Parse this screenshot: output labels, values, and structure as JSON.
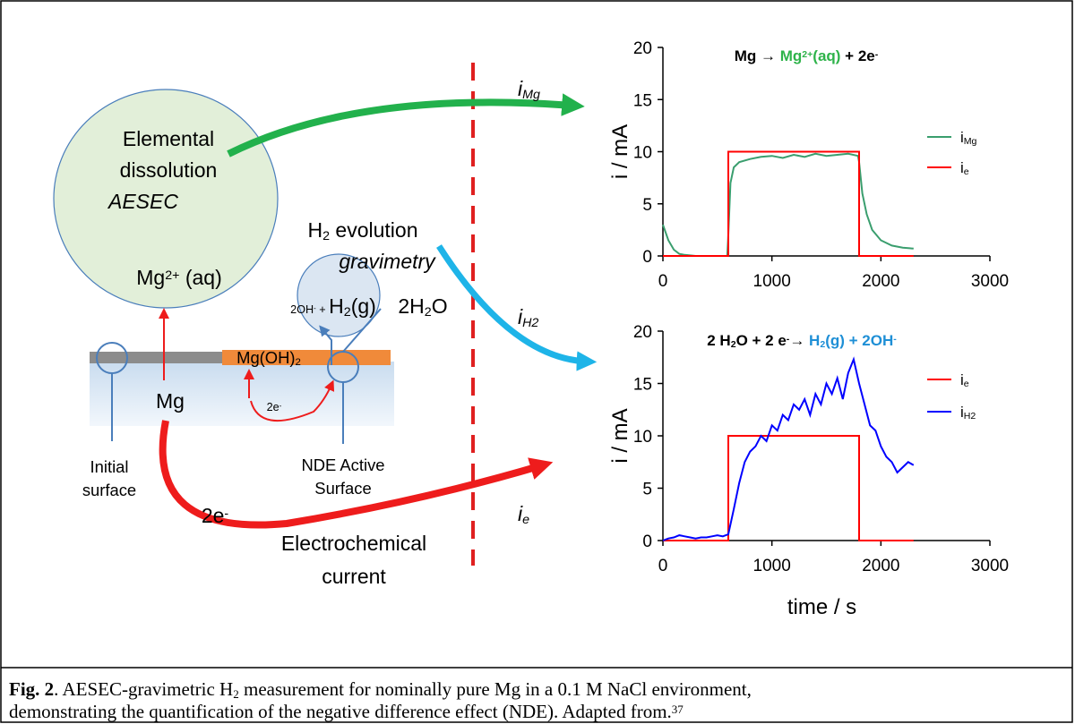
{
  "diagram": {
    "elemental": [
      {
        "text": "Elemental"
      }
    ],
    "dissolution": [
      {
        "text": "dissolution"
      }
    ],
    "aesec": [
      {
        "text": "AESEC",
        "style": "italic"
      }
    ],
    "mg_ion": [
      {
        "text": "Mg"
      },
      {
        "text": "2+",
        "style": "sup"
      },
      {
        "text": " (aq)"
      }
    ],
    "h2_evolution": [
      {
        "text": "H"
      },
      {
        "text": "2",
        "style": "sub"
      },
      {
        "text": " evolution"
      }
    ],
    "gravimetry": [
      {
        "text": "gravimetry",
        "style": "italic"
      }
    ],
    "oh_h2": [
      {
        "text": "2OH",
        "style": "small"
      },
      {
        "text": "-",
        "style": "small sup"
      },
      {
        "text": " + ",
        "style": "small"
      },
      {
        "text": "H"
      },
      {
        "text": "2",
        "style": "sub"
      },
      {
        "text": "(g)"
      }
    ],
    "water": [
      {
        "text": "2H"
      },
      {
        "text": "2",
        "style": "sub"
      },
      {
        "text": "O"
      }
    ],
    "mgoh2": [
      {
        "text": "Mg(OH)",
        "style": "mid"
      },
      {
        "text": "2",
        "style": "mid sub"
      }
    ],
    "mg": [
      {
        "text": "Mg"
      }
    ],
    "e_small": [
      {
        "text": "2e",
        "style": "small"
      },
      {
        "text": "-",
        "style": "small sup"
      }
    ],
    "initial_1": [
      {
        "text": "Initial",
        "style": "mid"
      }
    ],
    "initial_2": [
      {
        "text": "surface",
        "style": "mid"
      }
    ],
    "nde_1": [
      {
        "text": "NDE Active",
        "style": "mid"
      }
    ],
    "nde_2": [
      {
        "text": "Surface",
        "style": "mid"
      }
    ],
    "e_big": [
      {
        "text": "2e"
      },
      {
        "text": "-",
        "style": "sup"
      }
    ],
    "current_1": [
      {
        "text": "Electrochemical"
      }
    ],
    "current_2": [
      {
        "text": "current"
      }
    ],
    "i_mg": [
      {
        "text": "i",
        "style": "italic"
      },
      {
        "text": "Mg",
        "style": "italic sub"
      }
    ],
    "i_h2": [
      {
        "text": "i",
        "style": "italic"
      },
      {
        "text": "H",
        "style": "italic sub"
      },
      {
        "text": "2",
        "style": "italic sub"
      }
    ],
    "i_e": [
      {
        "text": "i",
        "style": "italic"
      },
      {
        "text": "e",
        "style": "italic sub"
      }
    ]
  },
  "chart_data": [
    {
      "type": "line",
      "title": [
        {
          "text": "Mg → ",
          "style": "bold",
          "color": "#000000"
        },
        {
          "text": "Mg",
          "style": "bold",
          "color": "#2eb34a"
        },
        {
          "text": "2+",
          "style": "bold sup",
          "color": "#2eb34a"
        },
        {
          "text": "(aq)",
          "style": "bold",
          "color": "#2eb34a"
        },
        {
          "text": " + 2e",
          "style": "bold",
          "color": "#000000"
        },
        {
          "text": "-",
          "style": "bold sup",
          "color": "#000000"
        }
      ],
      "y_label": "i / mA",
      "xlim": [
        0,
        3000
      ],
      "xticks": [
        0,
        1000,
        2000,
        3000
      ],
      "ylim": [
        0,
        20
      ],
      "yticks": [
        0,
        5,
        10,
        15,
        20
      ],
      "series": [
        {
          "name": [
            {
              "text": "i"
            },
            {
              "text": "Mg",
              "style": "sub"
            }
          ],
          "color": "#3a9e6e",
          "x": [
            0,
            50,
            100,
            150,
            200,
            300,
            400,
            500,
            590,
            600,
            620,
            650,
            700,
            800,
            900,
            1000,
            1100,
            1200,
            1300,
            1400,
            1500,
            1600,
            1700,
            1790,
            1800,
            1830,
            1870,
            1920,
            2000,
            2100,
            2200,
            2300
          ],
          "values": [
            3,
            1.5,
            0.6,
            0.2,
            0.1,
            0,
            0,
            0,
            0,
            2,
            7,
            8.5,
            9,
            9.3,
            9.5,
            9.6,
            9.4,
            9.7,
            9.5,
            9.8,
            9.6,
            9.7,
            9.8,
            9.6,
            9,
            6,
            4,
            2.5,
            1.5,
            1,
            0.8,
            0.7
          ]
        },
        {
          "name": [
            {
              "text": "i"
            },
            {
              "text": "e",
              "style": "sub"
            }
          ],
          "color": "#ff0000",
          "x": [
            0,
            600,
            600,
            1800,
            1800,
            2300
          ],
          "values": [
            0,
            0,
            10,
            10,
            0,
            0
          ]
        }
      ]
    },
    {
      "type": "line",
      "title": [
        {
          "text": "2 H",
          "style": "bold",
          "color": "#000000"
        },
        {
          "text": "2",
          "style": "bold sub",
          "color": "#000000"
        },
        {
          "text": "O + 2 e",
          "style": "bold",
          "color": "#000000"
        },
        {
          "text": "-",
          "style": "bold sup",
          "color": "#000000"
        },
        {
          "text": "→ ",
          "style": "bold",
          "color": "#000000"
        },
        {
          "text": "H",
          "style": "bold",
          "color": "#1e8fd6"
        },
        {
          "text": "2",
          "style": "bold sub",
          "color": "#1e8fd6"
        },
        {
          "text": "(g) + 2OH",
          "style": "bold",
          "color": "#1e8fd6"
        },
        {
          "text": "-",
          "style": "bold sup",
          "color": "#1e8fd6"
        }
      ],
      "y_label": "i / mA",
      "x_label": "time / s",
      "xlim": [
        0,
        3000
      ],
      "xticks": [
        0,
        1000,
        2000,
        3000
      ],
      "ylim": [
        0,
        20
      ],
      "yticks": [
        0,
        5,
        10,
        15,
        20
      ],
      "series": [
        {
          "name": [
            {
              "text": "i"
            },
            {
              "text": "e",
              "style": "sub"
            }
          ],
          "color": "#ff0000",
          "x": [
            0,
            600,
            600,
            1800,
            1800,
            2300
          ],
          "values": [
            0,
            0,
            10,
            10,
            0,
            0
          ]
        },
        {
          "name": [
            {
              "text": "i"
            },
            {
              "text": "H",
              "style": "sub"
            },
            {
              "text": "2",
              "style": "sub"
            }
          ],
          "color": "#0000ff",
          "x": [
            0,
            50,
            100,
            150,
            200,
            250,
            300,
            350,
            400,
            450,
            500,
            550,
            600,
            650,
            700,
            750,
            800,
            850,
            900,
            950,
            1000,
            1050,
            1100,
            1150,
            1200,
            1250,
            1300,
            1350,
            1400,
            1450,
            1500,
            1550,
            1600,
            1650,
            1700,
            1750,
            1800,
            1850,
            1900,
            1950,
            2000,
            2050,
            2100,
            2150,
            2200,
            2250,
            2300
          ],
          "values": [
            0,
            0.2,
            0.3,
            0.5,
            0.4,
            0.3,
            0.2,
            0.3,
            0.3,
            0.4,
            0.5,
            0.4,
            0.6,
            3,
            5.5,
            7.5,
            8.5,
            9,
            10,
            9.5,
            11,
            10.5,
            12,
            11.5,
            13,
            12.5,
            13.5,
            12,
            14,
            13,
            15,
            14,
            15.5,
            13.5,
            16,
            17.3,
            15,
            13,
            11,
            10.5,
            9,
            8,
            7.5,
            6.5,
            7,
            7.5,
            7.2
          ]
        }
      ]
    }
  ],
  "caption": {
    "line_1": [
      {
        "text": "Fig. 2",
        "style": "bold"
      },
      {
        "text": ". AESEC-gravimetric H"
      },
      {
        "text": "2",
        "style": "sub"
      },
      {
        "text": " measurement for nominally pure Mg in a 0.1 M NaCl environment,"
      }
    ],
    "line_2": [
      {
        "text": "demonstrating the quantification of the negative difference effect (NDE). Adapted from."
      },
      {
        "text": "37",
        "style": "sup"
      }
    ]
  }
}
